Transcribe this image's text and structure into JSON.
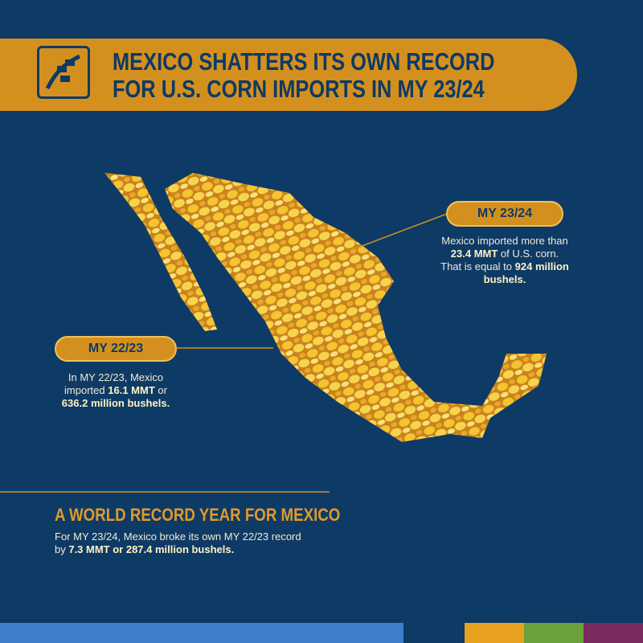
{
  "header": {
    "title_lines": [
      "MEXICO SHATTERS ITS OWN RECORD",
      "FOR U.S. CORN IMPORTS IN MY 23/24"
    ]
  },
  "callouts": [
    {
      "label": "MY 23/24",
      "text": [
        "Mexico imported more than ",
        "23.4 MMT",
        " of U.S. corn. That is equal to ",
        "924 million bushels."
      ]
    },
    {
      "label": "MY 22/23",
      "text": [
        "In MY 22/23, Mexico imported ",
        "16.1 MMT",
        " or ",
        "636.2 million bushels."
      ]
    }
  ],
  "footer": {
    "heading": "A WORLD RECORD YEAR FOR MEXICO",
    "text": [
      "For MY 23/24, Mexico broke its own MY 22/23 record by ",
      "7.3 MMT or 287.4 million bushels."
    ]
  }
}
